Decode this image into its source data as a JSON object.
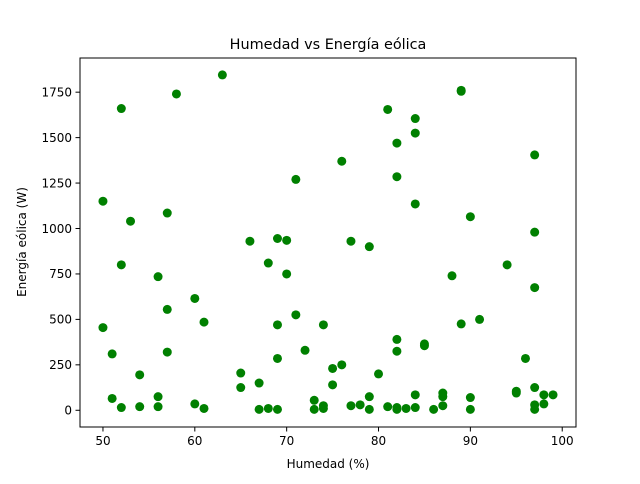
{
  "chart_data": {
    "type": "scatter",
    "title": "Humedad vs Energía eólica",
    "xlabel": "Humedad (%)",
    "ylabel": "Energía eólica (W)",
    "xlim": [
      47.5,
      101.5
    ],
    "ylim": [
      -92,
      1938
    ],
    "x_ticks": [
      50,
      60,
      70,
      80,
      90,
      100
    ],
    "x_tick_labels": [
      "50",
      "60",
      "70",
      "80",
      "90",
      "100"
    ],
    "y_ticks": [
      0,
      250,
      500,
      750,
      1000,
      1250,
      1500,
      1750
    ],
    "y_tick_labels": [
      "0",
      "250",
      "500",
      "750",
      "1000",
      "1250",
      "1500",
      "1750"
    ],
    "grid": false,
    "marker_color": "#008000",
    "points": [
      {
        "x": 50,
        "y": 1150
      },
      {
        "x": 50,
        "y": 455
      },
      {
        "x": 51,
        "y": 310
      },
      {
        "x": 51,
        "y": 65
      },
      {
        "x": 52,
        "y": 1660
      },
      {
        "x": 52,
        "y": 800
      },
      {
        "x": 52,
        "y": 15
      },
      {
        "x": 53,
        "y": 1040
      },
      {
        "x": 54,
        "y": 195
      },
      {
        "x": 54,
        "y": 20
      },
      {
        "x": 56,
        "y": 735
      },
      {
        "x": 56,
        "y": 75
      },
      {
        "x": 56,
        "y": 20
      },
      {
        "x": 57,
        "y": 1085
      },
      {
        "x": 57,
        "y": 555
      },
      {
        "x": 57,
        "y": 320
      },
      {
        "x": 58,
        "y": 1740
      },
      {
        "x": 60,
        "y": 615
      },
      {
        "x": 60,
        "y": 35
      },
      {
        "x": 61,
        "y": 485
      },
      {
        "x": 61,
        "y": 10
      },
      {
        "x": 63,
        "y": 1845
      },
      {
        "x": 65,
        "y": 205
      },
      {
        "x": 65,
        "y": 125
      },
      {
        "x": 66,
        "y": 930
      },
      {
        "x": 67,
        "y": 150
      },
      {
        "x": 67,
        "y": 5
      },
      {
        "x": 68,
        "y": 810
      },
      {
        "x": 68,
        "y": 10
      },
      {
        "x": 69,
        "y": 945
      },
      {
        "x": 69,
        "y": 470
      },
      {
        "x": 69,
        "y": 285
      },
      {
        "x": 69,
        "y": 5
      },
      {
        "x": 70,
        "y": 935
      },
      {
        "x": 70,
        "y": 750
      },
      {
        "x": 71,
        "y": 1270
      },
      {
        "x": 71,
        "y": 525
      },
      {
        "x": 72,
        "y": 330
      },
      {
        "x": 73,
        "y": 55
      },
      {
        "x": 73,
        "y": 5
      },
      {
        "x": 74,
        "y": 470
      },
      {
        "x": 74,
        "y": 25
      },
      {
        "x": 74,
        "y": 10
      },
      {
        "x": 75,
        "y": 230
      },
      {
        "x": 75,
        "y": 140
      },
      {
        "x": 76,
        "y": 1370
      },
      {
        "x": 76,
        "y": 250
      },
      {
        "x": 77,
        "y": 930
      },
      {
        "x": 77,
        "y": 25
      },
      {
        "x": 78,
        "y": 30
      },
      {
        "x": 79,
        "y": 900
      },
      {
        "x": 79,
        "y": 75
      },
      {
        "x": 79,
        "y": 5
      },
      {
        "x": 80,
        "y": 200
      },
      {
        "x": 81,
        "y": 1655
      },
      {
        "x": 81,
        "y": 20
      },
      {
        "x": 82,
        "y": 1470
      },
      {
        "x": 82,
        "y": 1285
      },
      {
        "x": 82,
        "y": 390
      },
      {
        "x": 82,
        "y": 325
      },
      {
        "x": 82,
        "y": 15
      },
      {
        "x": 82,
        "y": 5
      },
      {
        "x": 83,
        "y": 10
      },
      {
        "x": 84,
        "y": 1605
      },
      {
        "x": 84,
        "y": 1525
      },
      {
        "x": 84,
        "y": 1135
      },
      {
        "x": 84,
        "y": 85
      },
      {
        "x": 84,
        "y": 15
      },
      {
        "x": 85,
        "y": 365
      },
      {
        "x": 85,
        "y": 355
      },
      {
        "x": 86,
        "y": 5
      },
      {
        "x": 87,
        "y": 95
      },
      {
        "x": 87,
        "y": 75
      },
      {
        "x": 87,
        "y": 25
      },
      {
        "x": 88,
        "y": 740
      },
      {
        "x": 89,
        "y": 1760
      },
      {
        "x": 89,
        "y": 1755
      },
      {
        "x": 89,
        "y": 475
      },
      {
        "x": 90,
        "y": 1065
      },
      {
        "x": 90,
        "y": 70
      },
      {
        "x": 90,
        "y": 5
      },
      {
        "x": 91,
        "y": 500
      },
      {
        "x": 94,
        "y": 800
      },
      {
        "x": 95,
        "y": 105
      },
      {
        "x": 95,
        "y": 95
      },
      {
        "x": 96,
        "y": 285
      },
      {
        "x": 97,
        "y": 1405
      },
      {
        "x": 97,
        "y": 980
      },
      {
        "x": 97,
        "y": 675
      },
      {
        "x": 97,
        "y": 125
      },
      {
        "x": 97,
        "y": 30
      },
      {
        "x": 97,
        "y": 5
      },
      {
        "x": 98,
        "y": 85
      },
      {
        "x": 98,
        "y": 35
      },
      {
        "x": 99,
        "y": 85
      }
    ]
  }
}
